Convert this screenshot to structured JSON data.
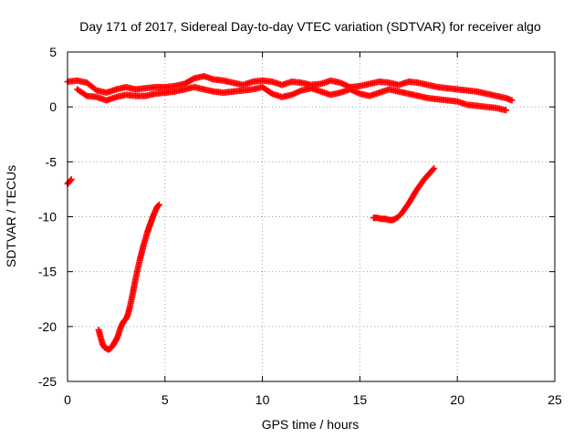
{
  "chart_data": {
    "type": "scatter",
    "title": "Day 171 of 2017, Sidereal Day-to-day VTEC variation (SDTVAR) for receiver algo",
    "xlabel": "GPS time / hours",
    "ylabel": "SDTVAR / TECUs",
    "xlim": [
      0,
      25
    ],
    "ylim": [
      -25,
      5
    ],
    "xticks": [
      0,
      5,
      10,
      15,
      20,
      25
    ],
    "yticks": [
      -25,
      -20,
      -15,
      -10,
      -5,
      0,
      5
    ],
    "xtick_labels": [
      "0",
      "5",
      "10",
      "15",
      "20",
      "25"
    ],
    "ytick_labels": [
      "-25",
      "-20",
      "-15",
      "-10",
      "-5",
      "0",
      "5"
    ],
    "grid": true,
    "marker": "+",
    "marker_color": "#ff0000",
    "series": [
      {
        "name": "near-zero band (upper track)",
        "x": [
          0.0,
          0.5,
          1.0,
          1.5,
          2.0,
          2.5,
          3.0,
          3.5,
          4.0,
          4.5,
          5.0,
          5.5,
          6.0,
          6.5,
          7.0,
          7.5,
          8.0,
          8.5,
          9.0,
          9.5,
          10.0,
          10.5,
          11.0,
          11.5,
          12.0,
          12.5,
          13.0,
          13.5,
          14.0,
          14.5,
          15.0,
          15.5,
          16.0,
          16.5,
          17.0,
          17.5,
          18.0,
          18.5,
          19.0,
          19.5,
          20.0,
          20.5,
          21.0,
          21.5,
          22.0,
          22.5,
          22.8
        ],
        "y": [
          2.3,
          2.4,
          2.2,
          1.5,
          1.3,
          1.6,
          1.8,
          1.6,
          1.7,
          1.8,
          1.8,
          1.9,
          2.1,
          2.6,
          2.8,
          2.5,
          2.4,
          2.2,
          2.0,
          2.3,
          2.4,
          2.3,
          2.0,
          2.3,
          2.2,
          2.0,
          2.1,
          2.4,
          2.2,
          1.8,
          1.9,
          2.1,
          2.3,
          2.2,
          2.0,
          2.3,
          2.2,
          2.0,
          1.8,
          1.7,
          1.6,
          1.5,
          1.4,
          1.2,
          1.0,
          0.8,
          0.6
        ]
      },
      {
        "name": "near-zero band (lower track)",
        "x": [
          0.5,
          1.0,
          1.5,
          2.0,
          2.5,
          3.0,
          3.5,
          4.0,
          4.5,
          5.0,
          5.5,
          6.0,
          6.5,
          7.0,
          7.5,
          8.0,
          8.5,
          9.0,
          9.5,
          10.0,
          10.5,
          11.0,
          11.5,
          12.0,
          12.5,
          13.0,
          13.5,
          14.0,
          14.5,
          15.0,
          15.5,
          16.0,
          16.5,
          17.0,
          17.5,
          18.0,
          18.5,
          19.0,
          19.5,
          20.0,
          20.5,
          21.0,
          21.5,
          22.0,
          22.5
        ],
        "y": [
          1.6,
          1.0,
          0.9,
          0.6,
          0.9,
          1.1,
          1.0,
          1.0,
          1.2,
          1.3,
          1.4,
          1.6,
          1.8,
          1.6,
          1.4,
          1.3,
          1.4,
          1.5,
          1.6,
          1.8,
          1.2,
          0.9,
          1.1,
          1.5,
          1.7,
          1.4,
          1.1,
          1.3,
          1.6,
          1.2,
          1.0,
          1.3,
          1.6,
          1.4,
          1.2,
          1.0,
          0.8,
          0.7,
          0.6,
          0.5,
          0.2,
          0.1,
          0.0,
          -0.1,
          -0.3
        ]
      },
      {
        "name": "isolated points near -7",
        "x": [
          0.0,
          0.1,
          0.2
        ],
        "y": [
          -7.0,
          -6.8,
          -6.6
        ]
      },
      {
        "name": "early descending/ascending arc",
        "x": [
          1.6,
          1.7,
          1.8,
          1.9,
          2.0,
          2.1,
          2.2,
          2.3,
          2.4,
          2.5,
          2.6,
          2.7,
          2.8,
          2.9,
          3.0,
          3.1,
          3.2,
          3.3,
          3.4,
          3.5,
          3.6,
          3.7,
          3.8,
          3.9,
          4.0,
          4.1,
          4.2,
          4.3,
          4.4,
          4.5,
          4.6,
          4.7
        ],
        "y": [
          -20.3,
          -21.0,
          -21.6,
          -21.9,
          -22.0,
          -22.1,
          -22.0,
          -21.8,
          -21.5,
          -21.2,
          -20.8,
          -20.2,
          -19.8,
          -19.5,
          -19.3,
          -18.9,
          -18.2,
          -17.4,
          -16.5,
          -15.6,
          -14.8,
          -14.0,
          -13.3,
          -12.6,
          -12.0,
          -11.4,
          -10.9,
          -10.4,
          -9.9,
          -9.5,
          -9.1,
          -8.9
        ]
      },
      {
        "name": "late ascending arc",
        "x": [
          15.7,
          15.9,
          16.1,
          16.3,
          16.5,
          16.7,
          16.9,
          17.1,
          17.3,
          17.5,
          17.7,
          17.9,
          18.1,
          18.3,
          18.5,
          18.7,
          18.8
        ],
        "y": [
          -10.1,
          -10.1,
          -10.2,
          -10.2,
          -10.3,
          -10.3,
          -10.1,
          -9.8,
          -9.3,
          -8.8,
          -8.2,
          -7.6,
          -7.1,
          -6.6,
          -6.2,
          -5.8,
          -5.6
        ]
      }
    ]
  }
}
